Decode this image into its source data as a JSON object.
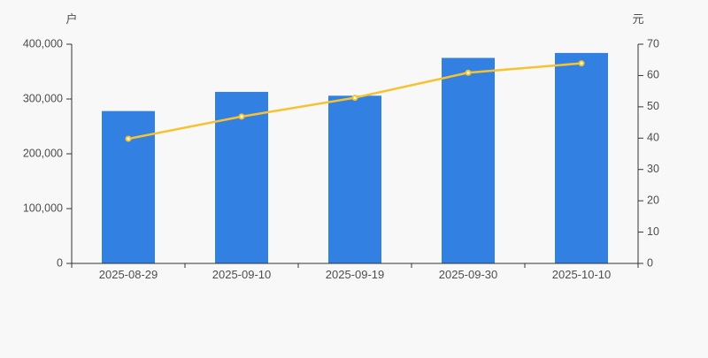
{
  "chart_data": {
    "type": "bar-line-combo",
    "categories": [
      "2025-08-29",
      "2025-09-10",
      "2025-09-19",
      "2025-09-30",
      "2025-10-10"
    ],
    "series": [
      {
        "type": "bar",
        "axis": "left",
        "values": [
          278000,
          313000,
          306000,
          375000,
          384000
        ]
      },
      {
        "type": "line",
        "axis": "right",
        "values": [
          39.8,
          46.9,
          52.9,
          60.9,
          63.9
        ]
      }
    ],
    "left_axis": {
      "title": "户",
      "min": 0,
      "max": 400000,
      "tick_interval": 100000,
      "tick_labels": [
        "0",
        "100,000",
        "200,000",
        "300,000",
        "400,000"
      ]
    },
    "right_axis": {
      "title": "元",
      "min": 0,
      "max": 70,
      "tick_interval": 10,
      "tick_labels": [
        "0",
        "10",
        "20",
        "30",
        "40",
        "50",
        "60",
        "70"
      ]
    },
    "legend": "none",
    "grid": "off",
    "colors": {
      "bar": "#3180e2",
      "line": "#f6c230",
      "marker_fill": "#ffffff",
      "axis": "#333333",
      "text": "#4d4d4d",
      "background": "#f8f8f9"
    }
  }
}
